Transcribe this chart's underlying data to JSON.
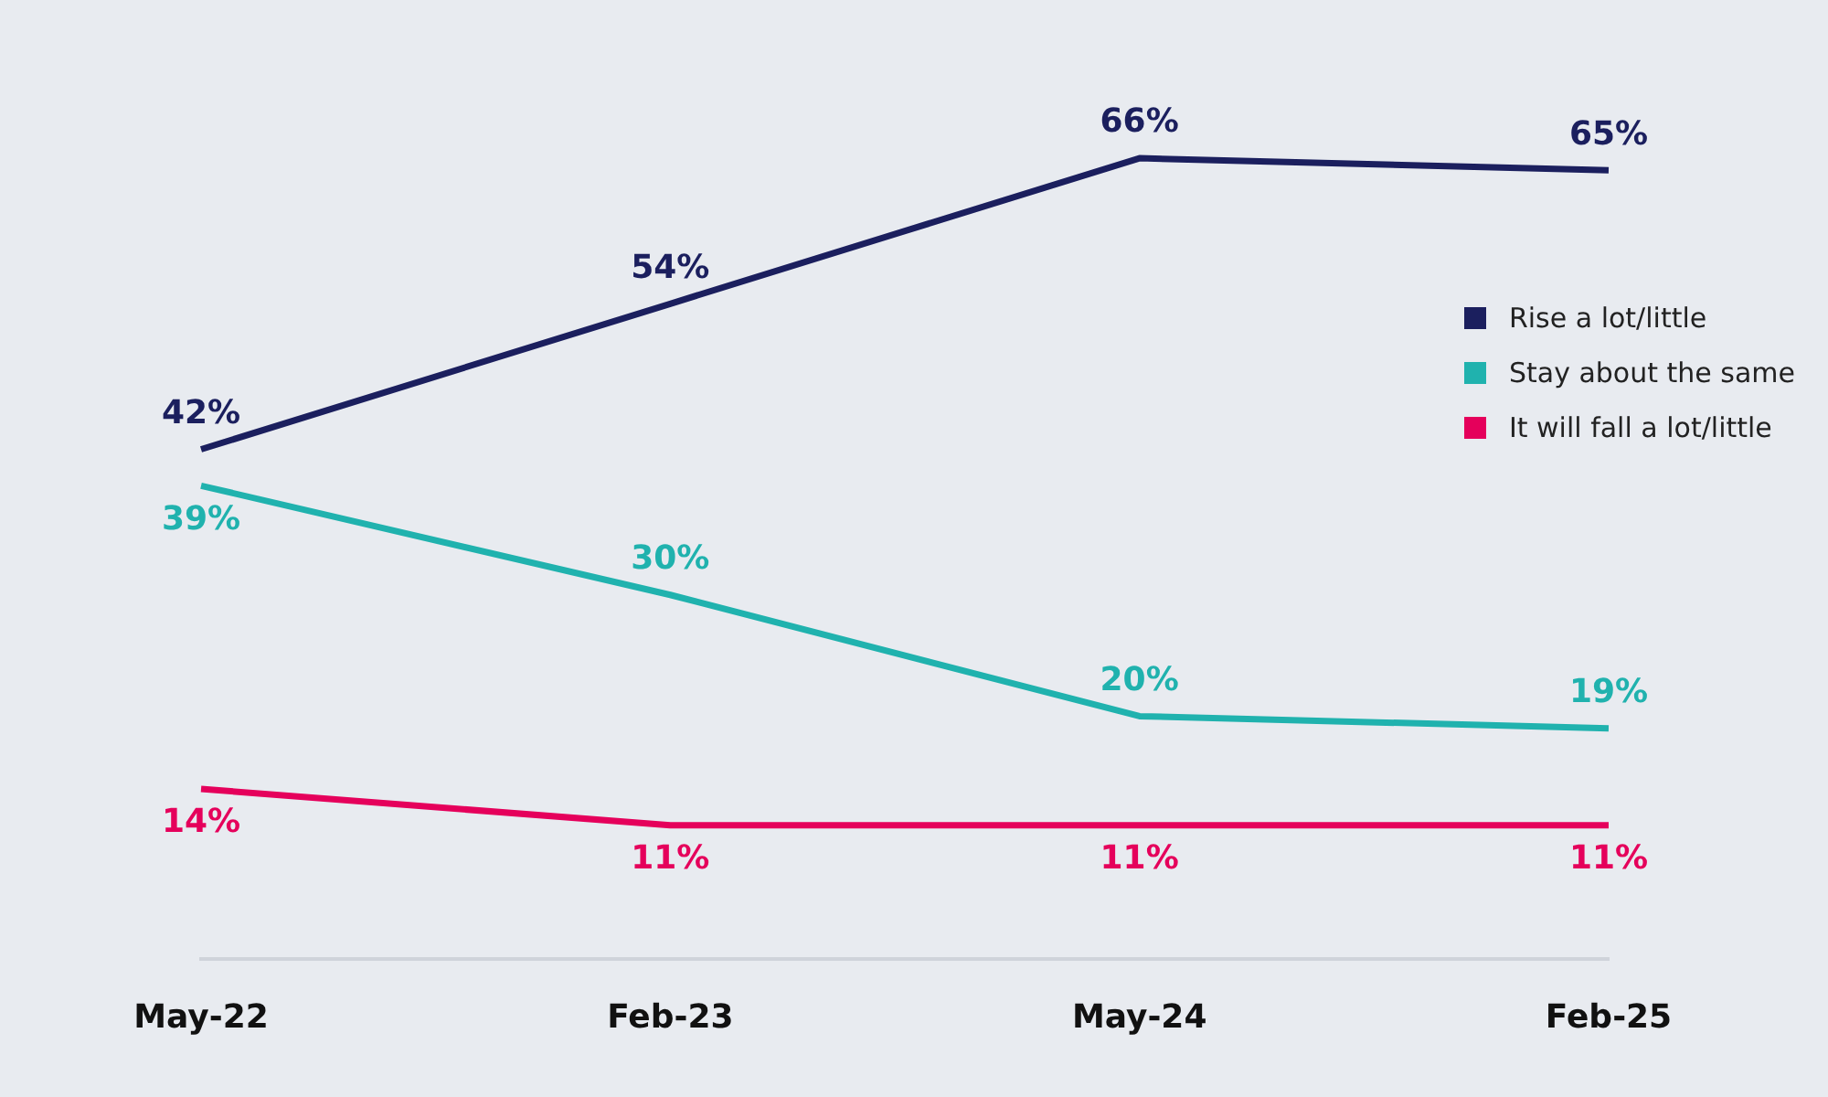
{
  "chart_data": {
    "type": "line",
    "categories": [
      "May-22",
      "Feb-23",
      "May-24",
      "Feb-25"
    ],
    "series": [
      {
        "name": "Rise a lot/little",
        "color": "#1b1f5e",
        "values": [
          42,
          54,
          66,
          65
        ],
        "value_labels": [
          "42%",
          "54%",
          "66%",
          "65%"
        ]
      },
      {
        "name": "Stay about the same",
        "color": "#20b2ae",
        "values": [
          39,
          30,
          20,
          19
        ],
        "value_labels": [
          "39%",
          "30%",
          "20%",
          "19%"
        ]
      },
      {
        "name": "It will fall a lot/little",
        "color": "#e5005b",
        "values": [
          14,
          11,
          11,
          11
        ],
        "value_labels": [
          "14%",
          "11%",
          "11%",
          "11%"
        ]
      }
    ],
    "legend": "right",
    "grid": false,
    "marker": "none",
    "line_style": "solid",
    "tick_labels": "x"
  }
}
